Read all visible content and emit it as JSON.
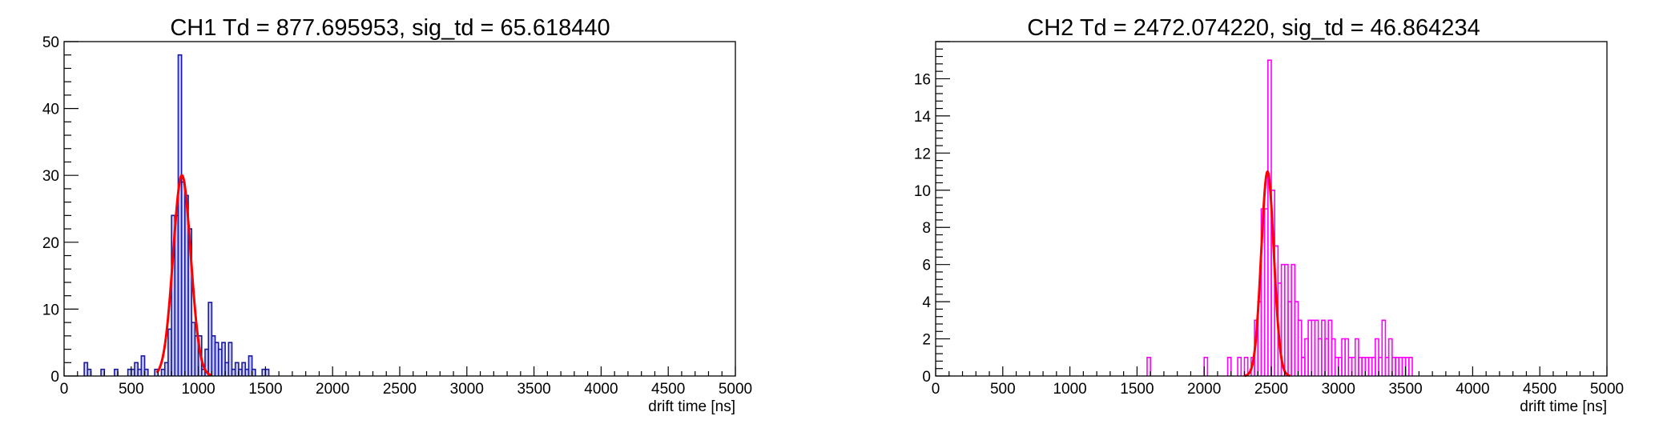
{
  "chart_data": [
    {
      "type": "histogram",
      "title": "CH1 Td = 877.695953, sig_td = 65.618440",
      "xlabel": "drift time [ns]",
      "ylabel": "",
      "xlim": [
        0,
        5000
      ],
      "ylim": [
        0,
        50
      ],
      "xticks": [
        0,
        500,
        1000,
        1500,
        2000,
        2500,
        3000,
        3500,
        4000,
        4500,
        5000
      ],
      "yticks": [
        0,
        10,
        20,
        30,
        40,
        50
      ],
      "bin_width": 25,
      "colors": {
        "histogram": "#1a1aa0",
        "fill": "#c8ccf0",
        "fit": "#ff0000"
      },
      "fill_under_histogram": true,
      "bins": [
        {
          "x": 150,
          "y": 2
        },
        {
          "x": 175,
          "y": 1
        },
        {
          "x": 275,
          "y": 1
        },
        {
          "x": 375,
          "y": 1
        },
        {
          "x": 475,
          "y": 1
        },
        {
          "x": 500,
          "y": 1
        },
        {
          "x": 525,
          "y": 2
        },
        {
          "x": 550,
          "y": 1
        },
        {
          "x": 575,
          "y": 3
        },
        {
          "x": 600,
          "y": 1
        },
        {
          "x": 675,
          "y": 1
        },
        {
          "x": 725,
          "y": 1
        },
        {
          "x": 750,
          "y": 2
        },
        {
          "x": 775,
          "y": 7
        },
        {
          "x": 800,
          "y": 24
        },
        {
          "x": 825,
          "y": 24
        },
        {
          "x": 850,
          "y": 48
        },
        {
          "x": 875,
          "y": 29
        },
        {
          "x": 900,
          "y": 27
        },
        {
          "x": 925,
          "y": 22
        },
        {
          "x": 950,
          "y": 8
        },
        {
          "x": 975,
          "y": 6
        },
        {
          "x": 1000,
          "y": 6
        },
        {
          "x": 1025,
          "y": 1
        },
        {
          "x": 1050,
          "y": 4
        },
        {
          "x": 1075,
          "y": 11
        },
        {
          "x": 1100,
          "y": 6
        },
        {
          "x": 1125,
          "y": 5
        },
        {
          "x": 1150,
          "y": 4
        },
        {
          "x": 1175,
          "y": 5
        },
        {
          "x": 1200,
          "y": 2
        },
        {
          "x": 1225,
          "y": 5
        },
        {
          "x": 1250,
          "y": 1
        },
        {
          "x": 1275,
          "y": 2
        },
        {
          "x": 1300,
          "y": 1
        },
        {
          "x": 1325,
          "y": 2
        },
        {
          "x": 1350,
          "y": 1
        },
        {
          "x": 1375,
          "y": 3
        },
        {
          "x": 1400,
          "y": 1
        },
        {
          "x": 1475,
          "y": 1
        },
        {
          "x": 1500,
          "y": 1
        }
      ],
      "fit": {
        "function": "gaus",
        "mean": 877.695953,
        "sigma": 65.61844,
        "amplitude": 30,
        "range": [
          690,
          1100
        ]
      }
    },
    {
      "type": "histogram",
      "title": "CH2 Td = 2472.074220, sig_td = 46.864234",
      "xlabel": "drift time [ns]",
      "ylabel": "",
      "xlim": [
        0,
        5000
      ],
      "ylim": [
        0,
        18
      ],
      "xticks": [
        0,
        500,
        1000,
        1500,
        2000,
        2500,
        3000,
        3500,
        4000,
        4500,
        5000
      ],
      "yticks": [
        0,
        2,
        4,
        6,
        8,
        10,
        12,
        14,
        16
      ],
      "bin_width": 25,
      "colors": {
        "histogram": "#ff00ff",
        "fit": "#ff0000"
      },
      "fill_under_histogram": false,
      "bins": [
        {
          "x": 1575,
          "y": 1
        },
        {
          "x": 2000,
          "y": 1
        },
        {
          "x": 2175,
          "y": 1
        },
        {
          "x": 2250,
          "y": 1
        },
        {
          "x": 2300,
          "y": 1
        },
        {
          "x": 2350,
          "y": 1
        },
        {
          "x": 2375,
          "y": 3
        },
        {
          "x": 2400,
          "y": 4
        },
        {
          "x": 2425,
          "y": 9
        },
        {
          "x": 2450,
          "y": 9
        },
        {
          "x": 2475,
          "y": 17
        },
        {
          "x": 2500,
          "y": 10
        },
        {
          "x": 2525,
          "y": 7
        },
        {
          "x": 2550,
          "y": 5
        },
        {
          "x": 2575,
          "y": 6
        },
        {
          "x": 2600,
          "y": 6
        },
        {
          "x": 2625,
          "y": 4
        },
        {
          "x": 2650,
          "y": 6
        },
        {
          "x": 2675,
          "y": 4
        },
        {
          "x": 2700,
          "y": 3
        },
        {
          "x": 2725,
          "y": 1
        },
        {
          "x": 2750,
          "y": 2
        },
        {
          "x": 2775,
          "y": 3
        },
        {
          "x": 2800,
          "y": 3
        },
        {
          "x": 2825,
          "y": 3
        },
        {
          "x": 2850,
          "y": 2
        },
        {
          "x": 2875,
          "y": 3
        },
        {
          "x": 2900,
          "y": 2
        },
        {
          "x": 2925,
          "y": 3
        },
        {
          "x": 2950,
          "y": 2
        },
        {
          "x": 2975,
          "y": 1
        },
        {
          "x": 3000,
          "y": 1
        },
        {
          "x": 3025,
          "y": 2
        },
        {
          "x": 3050,
          "y": 2
        },
        {
          "x": 3075,
          "y": 1
        },
        {
          "x": 3100,
          "y": 1
        },
        {
          "x": 3125,
          "y": 2
        },
        {
          "x": 3150,
          "y": 1
        },
        {
          "x": 3175,
          "y": 1
        },
        {
          "x": 3200,
          "y": 1
        },
        {
          "x": 3225,
          "y": 1
        },
        {
          "x": 3250,
          "y": 1
        },
        {
          "x": 3275,
          "y": 2
        },
        {
          "x": 3300,
          "y": 1
        },
        {
          "x": 3325,
          "y": 3
        },
        {
          "x": 3350,
          "y": 1
        },
        {
          "x": 3375,
          "y": 2
        },
        {
          "x": 3400,
          "y": 1
        },
        {
          "x": 3425,
          "y": 1
        },
        {
          "x": 3450,
          "y": 1
        },
        {
          "x": 3475,
          "y": 1
        },
        {
          "x": 3500,
          "y": 1
        },
        {
          "x": 3525,
          "y": 1
        }
      ],
      "fit": {
        "function": "gaus",
        "mean": 2472.07422,
        "sigma": 46.864234,
        "amplitude": 11,
        "range": [
          2300,
          2640
        ]
      }
    }
  ]
}
